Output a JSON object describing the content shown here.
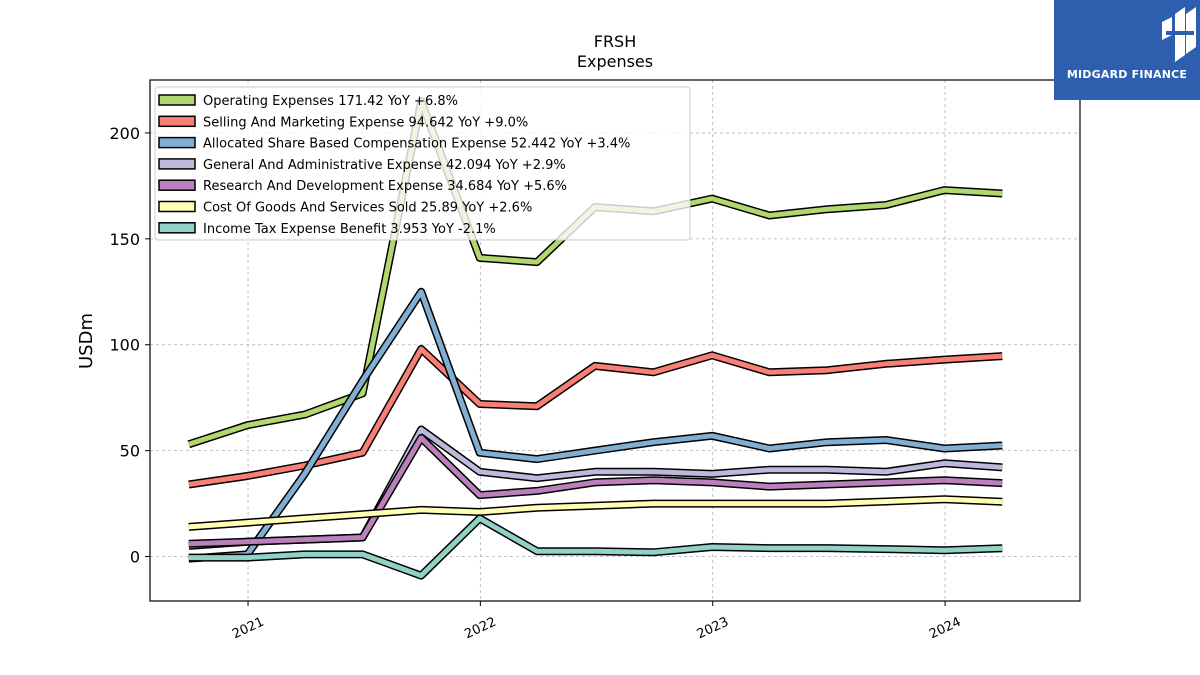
{
  "brand": {
    "name": "MIDGARD FINANCE",
    "color": "#2d5fae"
  },
  "chart_data": {
    "type": "line",
    "title": "FRSH",
    "subtitle": "Expenses",
    "ylabel": "USDm",
    "xlabel": "",
    "x_ticks": [
      "2021",
      "2022",
      "2023",
      "2024"
    ],
    "y_ticks": [
      0,
      50,
      100,
      150,
      200
    ],
    "ylim": [
      -21,
      225
    ],
    "xlim": [
      "2020-07-31",
      "2024-07-31"
    ],
    "grid": true,
    "legend_position": "top-left",
    "x": [
      "2020-09-30",
      "2020-12-31",
      "2021-03-31",
      "2021-06-30",
      "2021-09-30",
      "2021-12-31",
      "2022-03-31",
      "2022-06-30",
      "2022-09-30",
      "2022-12-31",
      "2023-03-31",
      "2023-06-30",
      "2023-09-30",
      "2023-12-31",
      "2024-03-31"
    ],
    "series": [
      {
        "name": "Operating Expenses",
        "legend_label": "Operating Expenses  171.42 YoY +6.8%",
        "color": "#b0d86e",
        "values": [
          53,
          62,
          67,
          77,
          215,
          141,
          139,
          165,
          163,
          169,
          161,
          164,
          166,
          173,
          171.42
        ]
      },
      {
        "name": "Selling And Marketing Expense",
        "legend_label": "Selling And Marketing Expense  94.642 YoY +9.0%",
        "color": "#f77f73",
        "values": [
          34,
          38,
          43,
          49,
          98,
          72,
          71,
          90,
          87,
          95,
          87,
          88,
          91,
          93,
          94.642
        ]
      },
      {
        "name": "Allocated Share Based Compensation Expense",
        "legend_label": "Allocated Share Based Compensation Expense  52.442 YoY +3.4%",
        "color": "#80afd3",
        "values": [
          -1,
          1,
          39,
          83,
          125,
          49,
          46,
          50,
          54,
          57,
          51,
          54,
          55,
          51,
          52.442
        ]
      },
      {
        "name": "General And Administrative Expense",
        "legend_label": "General And Administrative Expense  42.094 YoY +2.9%",
        "color": "#bdb9db",
        "values": [
          5,
          7,
          8,
          9,
          60,
          40,
          37,
          40,
          40,
          39,
          41,
          41,
          40,
          44,
          42.094
        ]
      },
      {
        "name": "Research And Development Expense",
        "legend_label": "Research And Development Expense  34.684 YoY +5.6%",
        "color": "#bb80bc",
        "values": [
          6,
          7,
          8,
          9,
          56,
          29,
          31,
          35,
          36,
          35,
          33,
          34,
          35,
          36,
          34.684
        ]
      },
      {
        "name": "Cost Of Goods And Services Sold",
        "legend_label": "Cost Of Goods And Services Sold  25.89 YoY +2.6%",
        "color": "#feffb3",
        "values": [
          14,
          16,
          18,
          20,
          22,
          21,
          23,
          24,
          25,
          25,
          25,
          25,
          26,
          27,
          25.89
        ]
      },
      {
        "name": "Income Tax Expense Benefit",
        "legend_label": "Income Tax Expense Benefit  3.953 YoY -2.1%",
        "color": "#8ed3c6",
        "values": [
          -0.5,
          -0.5,
          1,
          1,
          -9,
          18,
          2.5,
          2.5,
          2,
          4.5,
          4,
          4,
          3.5,
          3,
          3.953
        ]
      }
    ]
  }
}
